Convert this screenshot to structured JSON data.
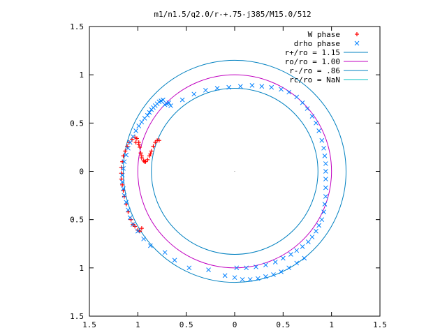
{
  "chart_data": {
    "type": "scatter",
    "title": "m1/n1.5/q2.0/r-+.75-j385/M15.0/512",
    "xlabel": "",
    "ylabel": "",
    "xlim": [
      -1.5,
      1.5
    ],
    "ylim": [
      -1.5,
      1.5
    ],
    "xticks": [
      -1.5,
      -1,
      -0.5,
      0,
      0.5,
      1,
      1.5
    ],
    "yticks": [
      -1.5,
      -1,
      -0.5,
      0,
      0.5,
      1,
      1.5
    ],
    "xtick_labels": [
      "1.5",
      "1",
      "0.5",
      "0",
      "0.5",
      "1",
      "1.5"
    ],
    "ytick_labels": [
      "1.5",
      "1",
      "0.5",
      "0",
      "0.5",
      "1",
      "1.5"
    ],
    "grid": false,
    "legend_position": "top-right",
    "series": [
      {
        "name": "W phase",
        "marker": "+",
        "color": "#ff0000",
        "points": [
          [
            -1.16,
            -0.14
          ],
          [
            -1.17,
            -0.08
          ],
          [
            -1.17,
            -0.02
          ],
          [
            -1.17,
            0.04
          ],
          [
            -1.16,
            0.1
          ],
          [
            -1.15,
            0.16
          ],
          [
            -1.13,
            0.21
          ],
          [
            -1.11,
            0.26
          ],
          [
            -1.09,
            0.3
          ],
          [
            -1.06,
            0.33
          ],
          [
            -1.03,
            0.35
          ],
          [
            -1.01,
            0.34
          ],
          [
            -0.99,
            0.3
          ],
          [
            -0.98,
            0.25
          ],
          [
            -0.97,
            0.19
          ],
          [
            -0.96,
            0.14
          ],
          [
            -0.94,
            0.11
          ],
          [
            -0.92,
            0.1
          ],
          [
            -0.9,
            0.12
          ],
          [
            -0.88,
            0.16
          ],
          [
            -0.86,
            0.21
          ],
          [
            -0.84,
            0.26
          ],
          [
            -0.82,
            0.3
          ],
          [
            -0.8,
            0.32
          ],
          [
            -0.78,
            0.32
          ],
          [
            -1.02,
            0.3
          ],
          [
            -0.99,
            0.28
          ],
          [
            -0.96,
            0.16
          ],
          [
            -0.93,
            0.1
          ],
          [
            -0.87,
            0.18
          ],
          [
            -1.15,
            -0.2
          ],
          [
            -1.14,
            -0.26
          ],
          [
            -1.12,
            -0.34
          ],
          [
            -1.1,
            -0.42
          ],
          [
            -1.07,
            -0.5
          ],
          [
            -1.03,
            -0.57
          ],
          [
            -0.98,
            -0.62
          ],
          [
            -0.96,
            -0.59
          ],
          [
            -1.0,
            -0.61
          ],
          [
            -1.05,
            -0.55
          ]
        ]
      },
      {
        "name": "drho phase",
        "marker": "x",
        "color": "#0080ff",
        "points": [
          [
            -0.74,
            0.74
          ],
          [
            -0.76,
            0.73
          ],
          [
            -0.78,
            0.72
          ],
          [
            -0.8,
            0.7
          ],
          [
            -0.82,
            0.68
          ],
          [
            -0.84,
            0.66
          ],
          [
            -0.86,
            0.64
          ],
          [
            -0.88,
            0.61
          ],
          [
            -0.9,
            0.58
          ],
          [
            -0.93,
            0.55
          ],
          [
            -0.96,
            0.51
          ],
          [
            -0.99,
            0.47
          ],
          [
            -1.02,
            0.42
          ],
          [
            -1.05,
            0.36
          ],
          [
            -1.08,
            0.3
          ],
          [
            -1.1,
            0.24
          ],
          [
            -1.12,
            0.17
          ],
          [
            -1.14,
            0.1
          ],
          [
            -1.15,
            0.03
          ],
          [
            -1.16,
            -0.04
          ],
          [
            -1.16,
            -0.11
          ],
          [
            -1.15,
            -0.18
          ],
          [
            -1.14,
            -0.25
          ],
          [
            -1.12,
            -0.32
          ],
          [
            -1.1,
            -0.4
          ],
          [
            -1.08,
            -0.48
          ],
          [
            -1.05,
            -0.55
          ],
          [
            -1.0,
            -0.62
          ],
          [
            -0.94,
            -0.7
          ],
          [
            -0.87,
            -0.77
          ],
          [
            -0.72,
            -0.84
          ],
          [
            -0.62,
            -0.92
          ],
          [
            -0.47,
            -1.0
          ],
          [
            -0.27,
            -1.02
          ],
          [
            -0.1,
            -1.08
          ],
          [
            0.0,
            -1.1
          ],
          [
            0.08,
            -1.12
          ],
          [
            0.16,
            -1.12
          ],
          [
            0.24,
            -1.11
          ],
          [
            0.32,
            -1.09
          ],
          [
            0.4,
            -1.07
          ],
          [
            0.48,
            -1.04
          ],
          [
            0.56,
            -1.0
          ],
          [
            0.64,
            -0.95
          ],
          [
            0.72,
            -0.9
          ],
          [
            0.02,
            -1.0
          ],
          [
            0.12,
            -1.0
          ],
          [
            0.22,
            -0.99
          ],
          [
            0.32,
            -0.97
          ],
          [
            0.42,
            -0.94
          ],
          [
            0.5,
            -0.9
          ],
          [
            0.58,
            -0.86
          ],
          [
            0.64,
            -0.82
          ],
          [
            0.7,
            -0.78
          ],
          [
            0.76,
            -0.73
          ],
          [
            0.8,
            -0.68
          ],
          [
            0.84,
            -0.62
          ],
          [
            0.87,
            -0.56
          ],
          [
            0.9,
            -0.5
          ],
          [
            0.92,
            -0.42
          ],
          [
            0.93,
            -0.34
          ],
          [
            0.94,
            -0.26
          ],
          [
            0.94,
            -0.17
          ],
          [
            0.94,
            -0.08
          ],
          [
            0.94,
            0.0
          ],
          [
            0.94,
            0.08
          ],
          [
            0.93,
            0.16
          ],
          [
            0.92,
            0.24
          ],
          [
            0.9,
            0.32
          ],
          [
            0.87,
            0.42
          ],
          [
            0.84,
            0.5
          ],
          [
            0.8,
            0.57
          ],
          [
            0.75,
            0.65
          ],
          [
            0.7,
            0.71
          ],
          [
            0.64,
            0.77
          ],
          [
            0.56,
            0.82
          ],
          [
            0.48,
            0.85
          ],
          [
            0.38,
            0.87
          ],
          [
            0.28,
            0.88
          ],
          [
            0.18,
            0.89
          ],
          [
            0.06,
            0.88
          ],
          [
            -0.06,
            0.87
          ],
          [
            -0.18,
            0.86
          ],
          [
            -0.3,
            0.84
          ],
          [
            -0.42,
            0.8
          ],
          [
            -0.54,
            0.74
          ],
          [
            -0.66,
            0.68
          ],
          [
            -0.72,
            0.69
          ],
          [
            -0.7,
            0.7
          ],
          [
            -0.68,
            0.71
          ]
        ]
      }
    ],
    "circles": [
      {
        "name": "r+/ro = 1.15",
        "radius": 1.15,
        "color": "#0080c0"
      },
      {
        "name": "ro/ro = 1.00",
        "radius": 1.0,
        "color": "#c000c0"
      },
      {
        "name": "r-/ro = .86",
        "radius": 0.86,
        "color": "#0080c0"
      },
      {
        "name": "rc/ro = NaN",
        "radius": null,
        "color": "#00c0c0"
      }
    ]
  }
}
